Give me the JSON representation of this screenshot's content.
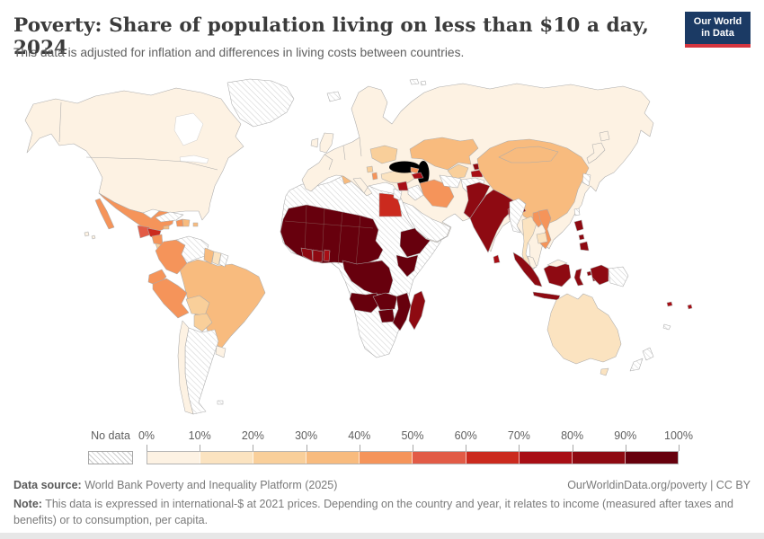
{
  "header": {
    "title": "Poverty: Share of population living on less than $10 a day, 2024",
    "subtitle": "This data is adjusted for inflation and differences in living costs between countries.",
    "logo": {
      "line1": "Our World",
      "line2": "in Data",
      "bg": "#1b3a64",
      "accent": "#d4353f"
    }
  },
  "legend": {
    "no_data_label": "No data",
    "ticks": [
      "0%",
      "10%",
      "20%",
      "30%",
      "40%",
      "50%",
      "60%",
      "70%",
      "80%",
      "90%",
      "100%"
    ],
    "colors": [
      "#FDF2E3",
      "#FBE3C0",
      "#F9CF9A",
      "#F8BB7E",
      "#F5945A",
      "#E25B46",
      "#CB2A1E",
      "#A80E15",
      "#8E0A12",
      "#67000D"
    ]
  },
  "chart_data": {
    "type": "heatmap",
    "subtype": "choropleth-world-map",
    "title": "Poverty: Share of population living on less than $10 a day, 2024",
    "unit": "% of population",
    "bin_edges_percent": [
      0,
      10,
      20,
      30,
      40,
      50,
      60,
      70,
      80,
      90,
      100
    ],
    "legend_position": "bottom",
    "no_data_style": "gray-diagonal-hatch"
  },
  "map": {
    "regions": {
      "north-america": "b1",
      "greenland": "nodata",
      "hawaii": "b1",
      "mexico": "b5",
      "guatemala": "b6",
      "honduras": "b7",
      "nicaragua": "b5",
      "costa-rica": "b3",
      "panama": "b4",
      "cuba": "nodata",
      "jamaica": "b4",
      "haiti": "b5",
      "dominican-republic": "b4",
      "puerto-rico": "b4",
      "colombia": "b5",
      "venezuela": "nodata",
      "guyana": "b4",
      "suriname": "b2",
      "french-guiana": "nodata",
      "ecuador": "b5",
      "peru": "b5",
      "brazil": "b4",
      "bolivia": "b3",
      "paraguay": "b3",
      "chile": "b1",
      "argentina": "nodata",
      "uruguay": "b1",
      "falkland-islands": "nodata",
      "eurasia": "b1",
      "uk": "b1",
      "ireland": "b1",
      "iceland": "nodata",
      "svalbard": "nodata",
      "ukraine": "b3",
      "bosnia": "b3",
      "albania": "b5",
      "turkey": "b2",
      "georgia": "b5",
      "armenia-azerbaijan": "b8",
      "syria": "b8",
      "israel-jordan": "nodata",
      "iraq": "nodata",
      "iran": "b5",
      "arabian-peninsula": "nodata",
      "kazakhstan": "b4",
      "uzbekistan": "b3",
      "turkmenistan": "nodata",
      "kyrgyzstan": "b9",
      "tajikistan": "b8",
      "afghanistan": "nodata",
      "pakistan": "b9",
      "india": "b9",
      "bangladesh": "b8",
      "bhutan": "nodata",
      "sri-lanka": "b8",
      "myanmar": "nodata",
      "thailand": "b2",
      "laos": "b5",
      "vietnam": "b5",
      "cambodia": "b2",
      "malaysia": "b1",
      "indonesia": "b9",
      "philippines": "b9",
      "china": "b4",
      "mongolia": "b4",
      "korea": "nodata",
      "taiwan": "nodata",
      "japan": "b1",
      "australia": "b2",
      "new-zealand": "nodata",
      "papua-new-guinea": "nodata",
      "fiji": "b8",
      "new-caledonia": "nodata",
      "africa": "nodata",
      "tunisia": "b4",
      "egypt": "b7",
      "sahel": "b10",
      "cote-divoire": "b9",
      "ghana": "b9",
      "benin": "b8",
      "ethiopia": "b10",
      "kenya-uganda": "b10",
      "drc": "b10",
      "angola": "b10",
      "zambia": "b10",
      "zimbabwe": "b10",
      "mozambique": "b10",
      "madagascar": "b9"
    }
  },
  "footer": {
    "source_label": "Data source:",
    "source_text": " World Bank Poverty and Inequality Platform (2025)",
    "link_text": "OurWorldinData.org/poverty | CC BY",
    "note_label": "Note:",
    "note_text": " This data is expressed in international-$ at 2021 prices. Depending on the country and year, it relates to income (measured after taxes and benefits) or to consumption, per capita."
  }
}
